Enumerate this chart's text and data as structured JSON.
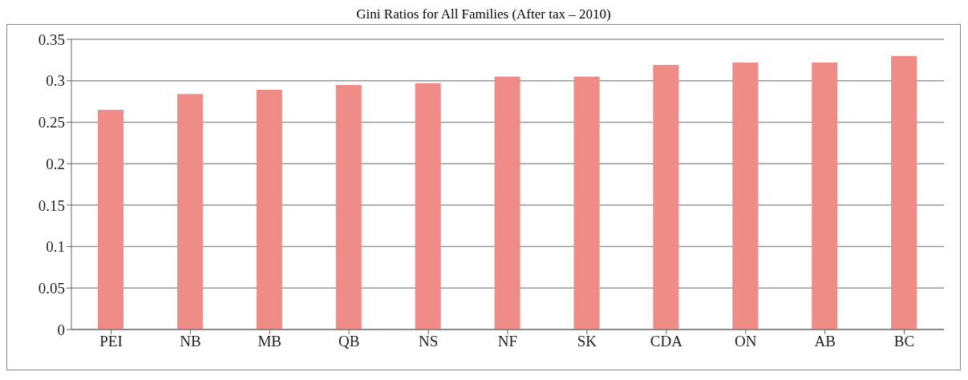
{
  "chart_data": {
    "type": "bar",
    "title": "Gini Ratios for All Families (After tax – 2010)",
    "categories": [
      "PEI",
      "NB",
      "MB",
      "QB",
      "NS",
      "NF",
      "SK",
      "CDA",
      "ON",
      "AB",
      "BC"
    ],
    "values": [
      0.265,
      0.284,
      0.289,
      0.295,
      0.297,
      0.305,
      0.305,
      0.319,
      0.322,
      0.322,
      0.33
    ],
    "color": "#ef8c88",
    "ylim": [
      0,
      0.35
    ],
    "yticks": [
      0,
      0.05,
      0.1,
      0.15,
      0.2,
      0.25,
      0.3,
      0.35
    ],
    "grid": "y"
  }
}
